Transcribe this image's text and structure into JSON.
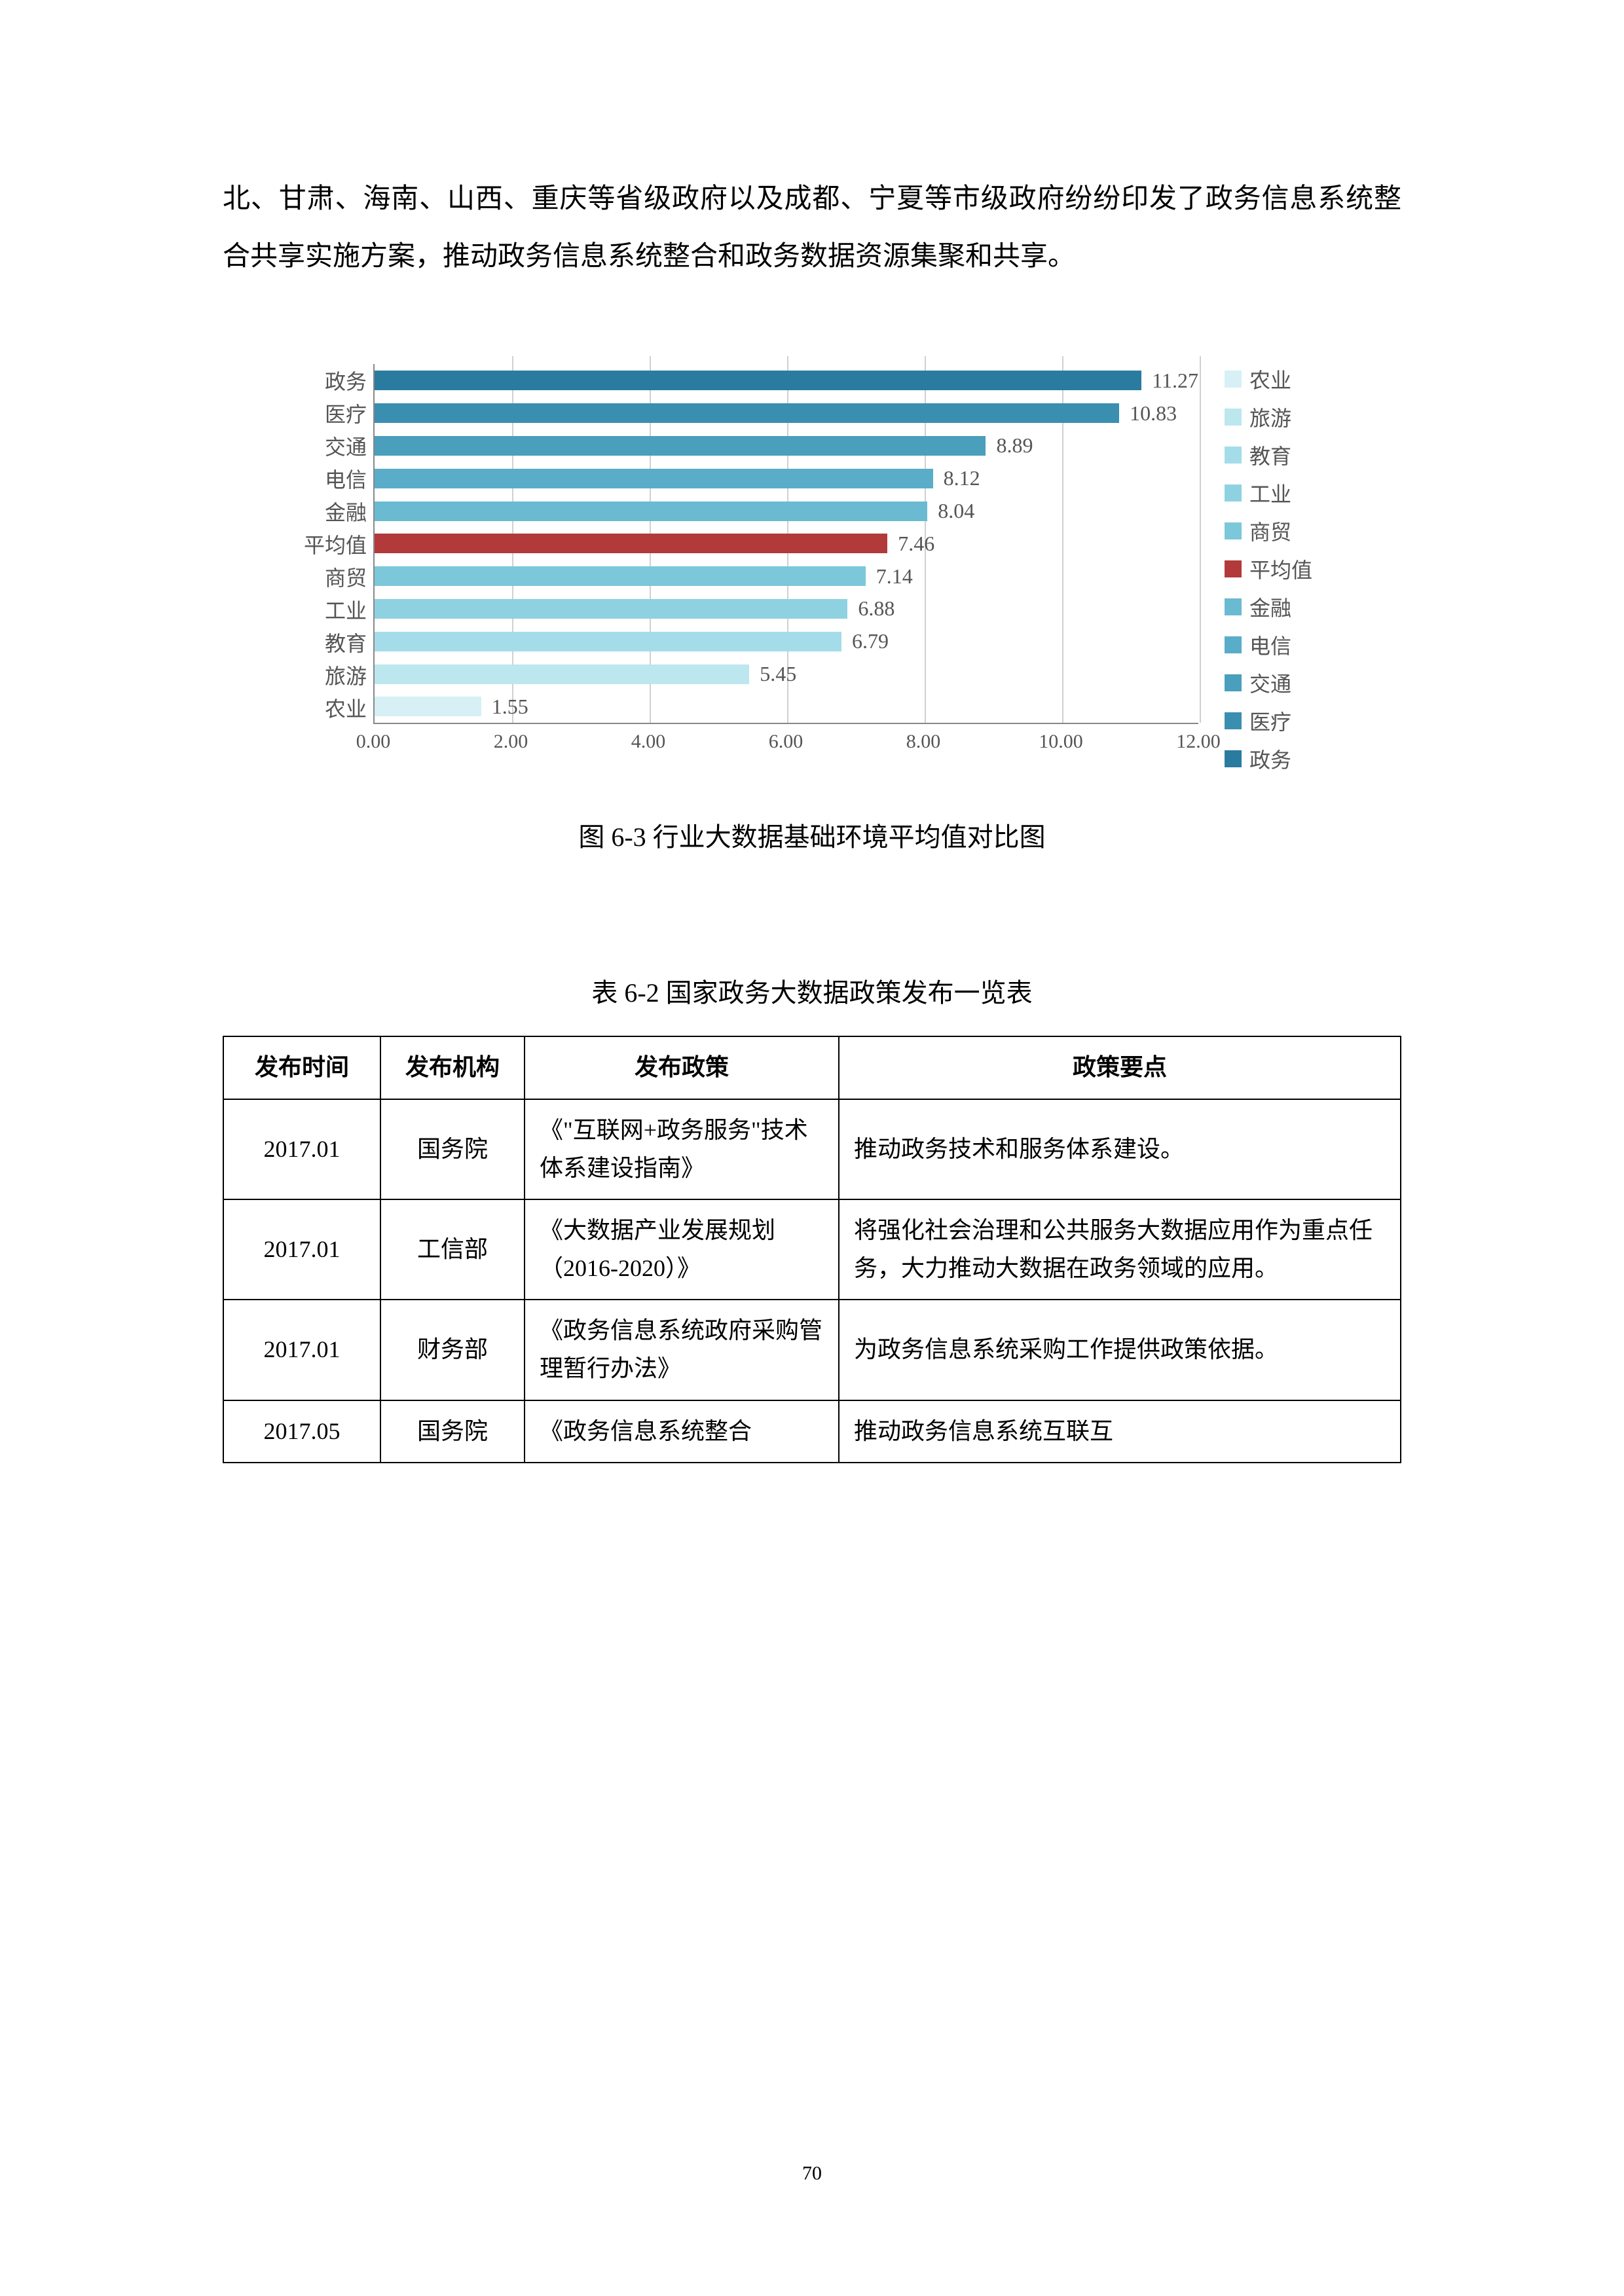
{
  "body_text": "北、甘肃、海南、山西、重庆等省级政府以及成都、宁夏等市级政府纷纷印发了政务信息系统整合共享实施方案，推动政务信息系统整合和政务数据资源集聚和共享。",
  "chart": {
    "type": "bar-horizontal",
    "caption": "图 6-3  行业大数据基础环境平均值对比图",
    "xlim": [
      0,
      12
    ],
    "xtick_step": 2,
    "xtick_format": "0.00",
    "xticks": [
      "0.00",
      "2.00",
      "4.00",
      "6.00",
      "8.00",
      "10.00",
      "12.00"
    ],
    "axis_color": "#888888",
    "grid_color": "#d0d0d0",
    "label_fontsize": 32,
    "label_color": "#555555",
    "bars": [
      {
        "cat": "政务",
        "value": 11.27,
        "label": "11.27",
        "color": "#2a7ba0"
      },
      {
        "cat": "医疗",
        "value": 10.83,
        "label": "10.83",
        "color": "#3a8fb0"
      },
      {
        "cat": "交通",
        "value": 8.89,
        "label": "8.89",
        "color": "#4a9fbd"
      },
      {
        "cat": "电信",
        "value": 8.12,
        "label": "8.12",
        "color": "#5aadc8"
      },
      {
        "cat": "金融",
        "value": 8.04,
        "label": "8.04",
        "color": "#6abbd2"
      },
      {
        "cat": "平均值",
        "value": 7.46,
        "label": "7.46",
        "color": "#b23a3a"
      },
      {
        "cat": "商贸",
        "value": 7.14,
        "label": "7.14",
        "color": "#7cc7da"
      },
      {
        "cat": "工业",
        "value": 6.88,
        "label": "6.88",
        "color": "#8ed2e2"
      },
      {
        "cat": "教育",
        "value": 6.79,
        "label": "6.79",
        "color": "#a4dde9"
      },
      {
        "cat": "旅游",
        "value": 5.45,
        "label": "5.45",
        "color": "#bce7ef"
      },
      {
        "cat": "农业",
        "value": 1.55,
        "label": "1.55",
        "color": "#d6f0f5"
      }
    ],
    "legend": [
      {
        "label": "农业",
        "color": "#d6f0f5"
      },
      {
        "label": "旅游",
        "color": "#bce7ef"
      },
      {
        "label": "教育",
        "color": "#a4dde9"
      },
      {
        "label": "工业",
        "color": "#8ed2e2"
      },
      {
        "label": "商贸",
        "color": "#7cc7da"
      },
      {
        "label": "平均值",
        "color": "#b23a3a"
      },
      {
        "label": "金融",
        "color": "#6abbd2"
      },
      {
        "label": "电信",
        "color": "#5aadc8"
      },
      {
        "label": "交通",
        "color": "#4a9fbd"
      },
      {
        "label": "医疗",
        "color": "#3a8fb0"
      },
      {
        "label": "政务",
        "color": "#2a7ba0"
      }
    ]
  },
  "table": {
    "caption": "表 6-2  国家政务大数据政策发布一览表",
    "columns": [
      "发布时间",
      "发布机构",
      "发布政策",
      "政策要点"
    ],
    "rows": [
      [
        "2017.01",
        "国务院",
        "《\"互联网+政务服务\"技术体系建设指南》",
        "推动政务技术和服务体系建设。"
      ],
      [
        "2017.01",
        "工信部",
        "《大数据产业发展规划（2016-2020）》",
        "将强化社会治理和公共服务大数据应用作为重点任务，大力推动大数据在政务领域的应用。"
      ],
      [
        "2017.01",
        "财务部",
        "《政务信息系统政府采购管理暂行办法》",
        "为政务信息系统采购工作提供政策依据。"
      ],
      [
        "2017.05",
        "国务院",
        "《政务信息系统整合",
        "推动政务信息系统互联互"
      ]
    ]
  },
  "page_number": "70"
}
